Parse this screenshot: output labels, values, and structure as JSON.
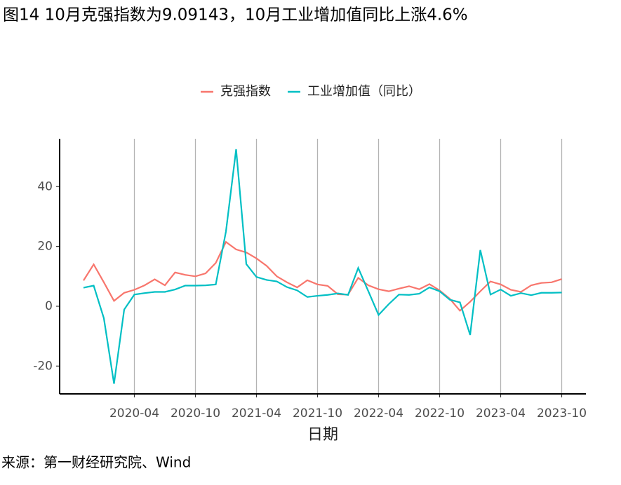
{
  "chart_data": {
    "type": "line",
    "title": "图14 10月克强指数为9.09143，10月工业增加值同比上涨4.6%",
    "x_label": "日期",
    "source": "来源：第一财经研究院、Wind",
    "categories": [
      null,
      null,
      null,
      null,
      null,
      "2020-04",
      null,
      null,
      null,
      null,
      null,
      "2020-10",
      null,
      null,
      null,
      null,
      null,
      "2021-04",
      null,
      null,
      null,
      null,
      null,
      "2021-10",
      null,
      null,
      null,
      null,
      null,
      "2022-04",
      null,
      null,
      null,
      null,
      null,
      "2022-10",
      null,
      null,
      null,
      null,
      null,
      "2023-04",
      null,
      null,
      null,
      null,
      null,
      "2023-10"
    ],
    "series": [
      {
        "name": "克强指数",
        "color": "#F8766D",
        "values": [
          8.6,
          14,
          8,
          1.8,
          4.5,
          5.5,
          7,
          9,
          7,
          11.3,
          10.5,
          10,
          11,
          14.5,
          21.5,
          19,
          18,
          16,
          13.5,
          10,
          8,
          6.3,
          8.7,
          7.3,
          6.8,
          4,
          3.9,
          9.5,
          7,
          5.7,
          5,
          5.9,
          6.7,
          5.7,
          7.4,
          5.3,
          2.5,
          -1.5,
          1.5,
          5,
          8.3,
          7.3,
          5.5,
          4.8,
          7,
          7.8,
          8,
          9.09143
        ]
      },
      {
        "name": "工业增加值（同比）",
        "color": "#00BFC4",
        "values": [
          6.2,
          6.9,
          -4,
          -25.9,
          -1.1,
          3.9,
          4.4,
          4.8,
          4.8,
          5.6,
          6.9,
          6.9,
          7,
          7.3,
          25,
          52.5,
          14.1,
          9.8,
          8.8,
          8.3,
          6.4,
          5.3,
          3.1,
          3.5,
          3.8,
          4.3,
          3.8,
          12.8,
          5,
          -2.9,
          0.7,
          3.9,
          3.8,
          4.2,
          6.3,
          5,
          2.2,
          1.3,
          -9.6,
          18.8,
          3.9,
          5.6,
          3.5,
          4.4,
          3.7,
          4.5,
          4.5,
          4.6
        ]
      }
    ],
    "ylim": [
      -29.3,
      56
    ],
    "yticks": [
      -20,
      0,
      20,
      40
    ],
    "x_grid": true,
    "legend": "top"
  }
}
